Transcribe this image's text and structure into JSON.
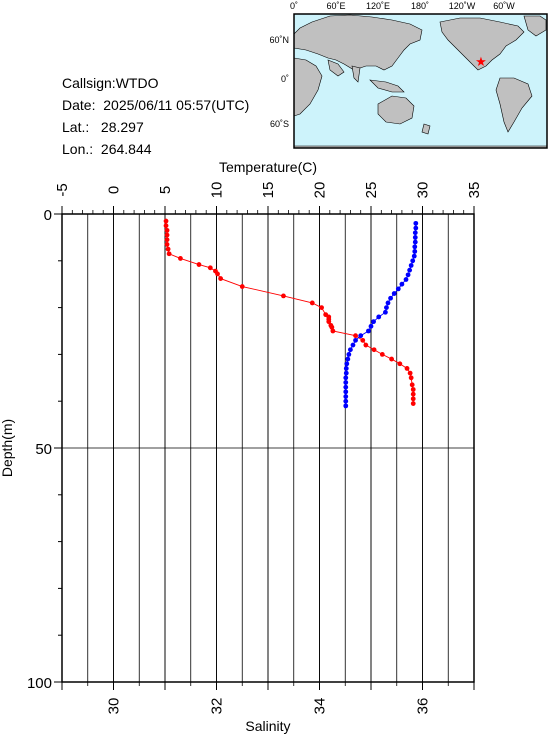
{
  "station": {
    "callsign": "Callsign:WTDO",
    "date_label": "Date:",
    "date_value": "2025/06/11 05:57(UTC)",
    "lat_label": "Lat.:",
    "lat_value": "28.297",
    "lon_label": "Lon.:",
    "lon_value": "264.844"
  },
  "map": {
    "top_labels": [
      "0˚",
      "60˚E",
      "120˚E",
      "180˚",
      "120˚W",
      "60˚W"
    ],
    "side_labels": [
      "60˚N",
      "0˚",
      "60˚S"
    ],
    "ocean_color": "#cdf3fb",
    "land_color": "#c0c0c0",
    "station_marker_color": "#ff0000"
  },
  "chart_data": {
    "type": "line",
    "ylabel": "Depth(m)",
    "ylim": [
      100,
      0
    ],
    "y_ticks": [
      0,
      50,
      100
    ],
    "top_axis": {
      "label": "Temperature(C)",
      "range": [
        -5,
        35
      ],
      "ticks": [
        -5,
        0,
        5,
        10,
        15,
        20,
        25,
        30,
        35
      ]
    },
    "bottom_axis": {
      "label": "Salinity",
      "range": [
        29,
        37
      ],
      "ticks": [
        30,
        32,
        34,
        36
      ]
    },
    "grid": true,
    "series": [
      {
        "axis": "top",
        "color": "#ff0000",
        "points": [
          [
            5.1,
            1.5
          ],
          [
            5.1,
            2.5
          ],
          [
            5.2,
            3.5
          ],
          [
            5.2,
            4.5
          ],
          [
            5.2,
            5.5
          ],
          [
            5.2,
            6.5
          ],
          [
            5.3,
            7.5
          ],
          [
            5.4,
            8.5
          ],
          [
            6.5,
            9.5
          ],
          [
            8.3,
            10.8
          ],
          [
            9.4,
            11.5
          ],
          [
            9.9,
            12.2
          ],
          [
            10.1,
            12.8
          ],
          [
            10.4,
            13.8
          ],
          [
            12.5,
            15.5
          ],
          [
            16.5,
            17.5
          ],
          [
            19.3,
            19.0
          ],
          [
            20.2,
            20.0
          ],
          [
            20.6,
            21.5
          ],
          [
            20.9,
            22.0
          ],
          [
            20.9,
            22.5
          ],
          [
            20.9,
            23.0
          ],
          [
            21.1,
            23.8
          ],
          [
            21.2,
            24.2
          ],
          [
            21.3,
            25.0
          ],
          [
            23.5,
            26.0
          ],
          [
            24.2,
            27.0
          ],
          [
            24.5,
            28.0
          ],
          [
            25.3,
            29.0
          ],
          [
            26.1,
            30.0
          ],
          [
            27.0,
            31.0
          ],
          [
            27.8,
            32.0
          ],
          [
            28.5,
            33.0
          ],
          [
            28.8,
            34.0
          ],
          [
            28.9,
            35.0
          ],
          [
            29.0,
            36.5
          ],
          [
            29.1,
            37.5
          ],
          [
            29.1,
            38.5
          ],
          [
            29.1,
            39.5
          ],
          [
            29.1,
            40.5
          ]
        ]
      },
      {
        "axis": "bottom",
        "color": "#0000ff",
        "points": [
          [
            35.87,
            2.0
          ],
          [
            35.87,
            3.0
          ],
          [
            35.86,
            4.0
          ],
          [
            35.86,
            5.0
          ],
          [
            35.86,
            6.0
          ],
          [
            35.85,
            7.0
          ],
          [
            35.85,
            8.0
          ],
          [
            35.84,
            9.0
          ],
          [
            35.81,
            10.0
          ],
          [
            35.78,
            11.0
          ],
          [
            35.75,
            12.0
          ],
          [
            35.72,
            13.0
          ],
          [
            35.68,
            14.0
          ],
          [
            35.6,
            15.0
          ],
          [
            35.53,
            16.0
          ],
          [
            35.45,
            17.0
          ],
          [
            35.38,
            18.0
          ],
          [
            35.33,
            19.0
          ],
          [
            35.3,
            20.0
          ],
          [
            35.28,
            21.0
          ],
          [
            35.15,
            22.0
          ],
          [
            35.05,
            23.0
          ],
          [
            35.0,
            24.0
          ],
          [
            34.95,
            25.0
          ],
          [
            34.8,
            26.0
          ],
          [
            34.7,
            27.0
          ],
          [
            34.65,
            28.0
          ],
          [
            34.6,
            29.0
          ],
          [
            34.57,
            30.0
          ],
          [
            34.55,
            31.0
          ],
          [
            34.53,
            32.0
          ],
          [
            34.52,
            33.0
          ],
          [
            34.52,
            34.0
          ],
          [
            34.51,
            35.0
          ],
          [
            34.51,
            36.0
          ],
          [
            34.51,
            37.0
          ],
          [
            34.51,
            38.0
          ],
          [
            34.51,
            39.0
          ],
          [
            34.51,
            40.0
          ],
          [
            34.51,
            41.0
          ]
        ]
      }
    ]
  }
}
